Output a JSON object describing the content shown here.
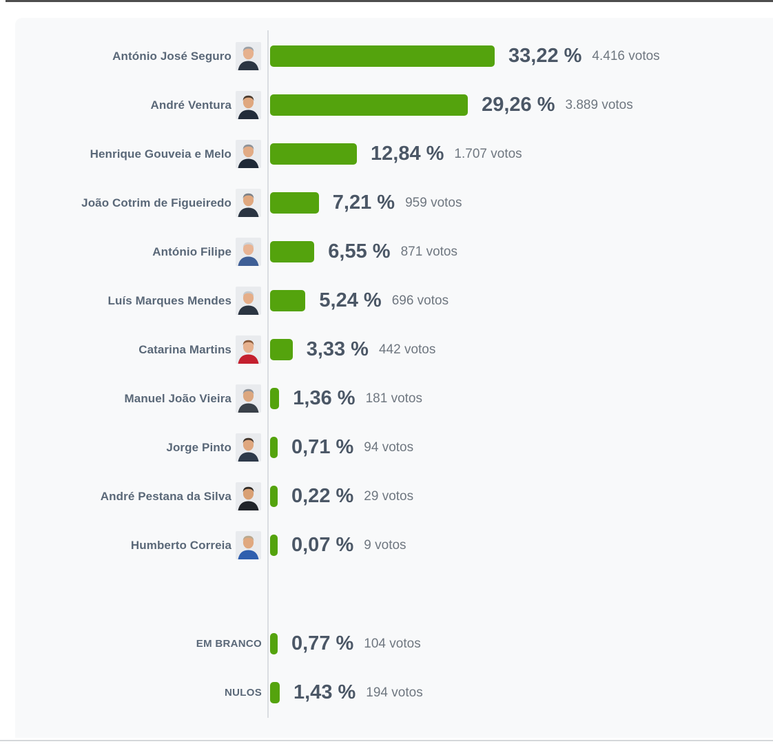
{
  "window": {
    "background": "#ffffff",
    "top_border_color": "#4e4e4e",
    "bottom_border_color": "#d4d7da",
    "panel_background": "#f8f9fa"
  },
  "chart_data": {
    "type": "bar",
    "orientation": "horizontal",
    "title": "",
    "bar_color": "#54a30d",
    "axis_line_color": "#dadde1",
    "value_suffix": "votos",
    "percent_axis_max": 33.22,
    "legend": "none",
    "grid": false,
    "candidates": [
      {
        "name": "António José Seguro",
        "percent": 33.22,
        "percent_label": "33,22 %",
        "votes": 4416,
        "votes_label": "4.416 votos",
        "avatar": {
          "bg": "#e9ebee",
          "skin": "#e6b18e",
          "hair": "#9aa0a6",
          "clothes": "#2b3542"
        }
      },
      {
        "name": "André Ventura",
        "percent": 29.26,
        "percent_label": "29,26 %",
        "votes": 3889,
        "votes_label": "3.889 votos",
        "avatar": {
          "bg": "#e9ebee",
          "skin": "#dfa77f",
          "hair": "#4a3b2e",
          "clothes": "#222c3a"
        }
      },
      {
        "name": "Henrique Gouveia e Melo",
        "percent": 12.84,
        "percent_label": "12,84 %",
        "votes": 1707,
        "votes_label": "1.707 votos",
        "avatar": {
          "bg": "#e9ebee",
          "skin": "#e2ab85",
          "hair": "#8d9298",
          "clothes": "#1f2937"
        }
      },
      {
        "name": "João Cotrim de Figueiredo",
        "percent": 7.21,
        "percent_label": "7,21 %",
        "votes": 959,
        "votes_label": "959 votos",
        "avatar": {
          "bg": "#eceef0",
          "skin": "#e0a87f",
          "hair": "#7d8288",
          "clothes": "#2b3542"
        }
      },
      {
        "name": "António Filipe",
        "percent": 6.55,
        "percent_label": "6,55 %",
        "votes": 871,
        "votes_label": "871 votos",
        "avatar": {
          "bg": "#e9ebee",
          "skin": "#e8b494",
          "hair": "#cfd2d6",
          "clothes": "#3f5f96"
        }
      },
      {
        "name": "Luís Marques Mendes",
        "percent": 5.24,
        "percent_label": "5,24 %",
        "votes": 696,
        "votes_label": "696 votos",
        "avatar": {
          "bg": "#e9ebee",
          "skin": "#e5ae89",
          "hair": "#c5c9cd",
          "clothes": "#2b3542"
        }
      },
      {
        "name": "Catarina Martins",
        "percent": 3.33,
        "percent_label": "3,33 %",
        "votes": 442,
        "votes_label": "442 votos",
        "avatar": {
          "bg": "#e9ebee",
          "skin": "#e6b18e",
          "hair": "#8a5a3a",
          "clothes": "#c4202f"
        }
      },
      {
        "name": "Manuel João Vieira",
        "percent": 1.36,
        "percent_label": "1,36 %",
        "votes": 181,
        "votes_label": "181 votos",
        "avatar": {
          "bg": "#e9ebee",
          "skin": "#dca77f",
          "hair": "#8d9298",
          "clothes": "#3a4149"
        }
      },
      {
        "name": "Jorge Pinto",
        "percent": 0.71,
        "percent_label": "0,71 %",
        "votes": 94,
        "votes_label": "94 votos",
        "avatar": {
          "bg": "#e9ebee",
          "skin": "#dfa77f",
          "hair": "#43362c",
          "clothes": "#2e3a4a"
        }
      },
      {
        "name": "André Pestana da Silva",
        "percent": 0.22,
        "percent_label": "0,22 %",
        "votes": 29,
        "votes_label": "29 votos",
        "avatar": {
          "bg": "#e9ebee",
          "skin": "#d9a074",
          "hair": "#2f2a26",
          "clothes": "#20242a"
        }
      },
      {
        "name": "Humberto Correia",
        "percent": 0.07,
        "percent_label": "0,07 %",
        "votes": 9,
        "votes_label": "9 votos",
        "avatar": {
          "bg": "#e9ebee",
          "skin": "#e0a87f",
          "hair": "#b9a98f",
          "clothes": "#2f5fae"
        }
      }
    ],
    "summary_rows": [
      {
        "name": "EM BRANCO",
        "percent": 0.77,
        "percent_label": "0,77 %",
        "votes": 104,
        "votes_label": "104 votos"
      },
      {
        "name": "NULOS",
        "percent": 1.43,
        "percent_label": "1,43 %",
        "votes": 194,
        "votes_label": "194 votos"
      }
    ]
  }
}
